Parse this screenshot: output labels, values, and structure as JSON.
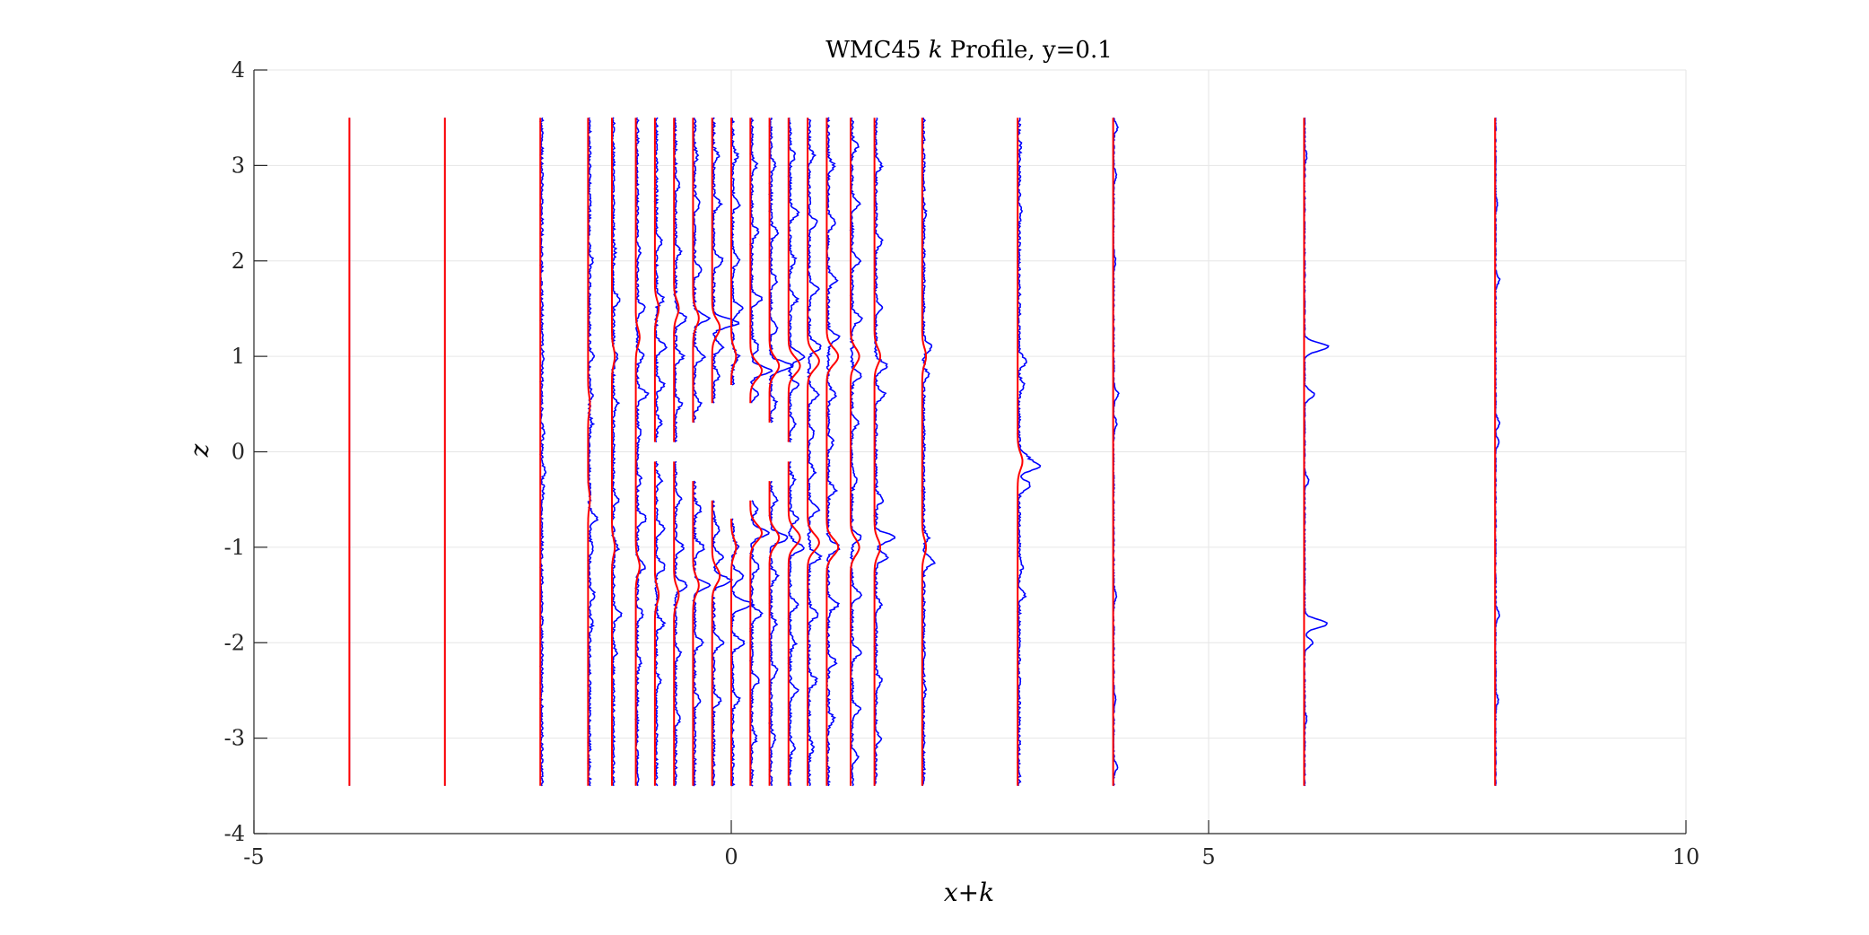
{
  "chart_data": {
    "type": "line",
    "title": "WMC45 k Profile, y=0.1",
    "title_parts": {
      "prefix": "WMC45 ",
      "italic": "k",
      "suffix": " Profile, y=0.1"
    },
    "xlabel": "x+k",
    "ylabel": "z",
    "xlim": [
      -5,
      10
    ],
    "ylim": [
      -4,
      4
    ],
    "xticks": [
      "-5",
      "0",
      "5",
      "10"
    ],
    "yticks": [
      "-4",
      "-3",
      "-2",
      "-1",
      "0",
      "1",
      "2",
      "3",
      "4"
    ],
    "grid": true,
    "z_range": [
      -3.5,
      3.5
    ],
    "colors": {
      "series_1": "#0000ff",
      "series_2": "#ff0000",
      "grid": "#e6e6e6",
      "axis": "#262626"
    },
    "stations": [
      {
        "x": -4.0,
        "gap": null,
        "blue_peaks": [],
        "red_peaks": []
      },
      {
        "x": -3.0,
        "gap": null,
        "blue_peaks": [],
        "red_peaks": []
      },
      {
        "x": -2.0,
        "gap": null,
        "blue_peaks": [
          [
            1.0,
            0.02
          ],
          [
            0.2,
            0.02
          ],
          [
            -0.2,
            0.03
          ],
          [
            -0.4,
            0.02
          ]
        ],
        "red_peaks": []
      },
      {
        "x": -1.5,
        "gap": null,
        "blue_peaks": [
          [
            2.0,
            0.03
          ],
          [
            1.0,
            0.04
          ],
          [
            0.6,
            0.03
          ],
          [
            0.3,
            0.03
          ],
          [
            -0.7,
            0.08
          ],
          [
            -1.0,
            0.04
          ],
          [
            -1.5,
            0.05
          ],
          [
            -1.8,
            0.03
          ]
        ],
        "red_peaks": [
          [
            0.5,
            0.02
          ],
          [
            -0.5,
            0.02
          ]
        ]
      },
      {
        "x": -1.25,
        "gap": null,
        "blue_peaks": [
          [
            2.1,
            0.02
          ],
          [
            1.6,
            0.06
          ],
          [
            1.0,
            0.05
          ],
          [
            0.5,
            0.05
          ],
          [
            -0.5,
            0.05
          ],
          [
            -1.0,
            0.05
          ],
          [
            -1.7,
            0.08
          ],
          [
            -2.1,
            0.03
          ]
        ],
        "red_peaks": [
          [
            1.0,
            0.03
          ],
          [
            -1.0,
            0.03
          ]
        ]
      },
      {
        "x": -1.0,
        "gap": null,
        "blue_peaks": [
          [
            2.1,
            0.03
          ],
          [
            1.5,
            0.08
          ],
          [
            1.0,
            0.07
          ],
          [
            0.6,
            0.11
          ],
          [
            0.2,
            0.04
          ],
          [
            -0.3,
            0.04
          ],
          [
            -0.7,
            0.1
          ],
          [
            -1.2,
            0.08
          ],
          [
            -1.7,
            0.06
          ],
          [
            -2.2,
            0.04
          ]
        ],
        "red_peaks": [
          [
            1.2,
            0.04
          ],
          [
            -1.2,
            0.04
          ]
        ]
      },
      {
        "x": -0.8,
        "gap": [
          -0.1,
          0.1
        ],
        "blue_peaks": [
          [
            2.2,
            0.05
          ],
          [
            1.6,
            0.08
          ],
          [
            1.1,
            0.1
          ],
          [
            0.7,
            0.08
          ],
          [
            0.3,
            0.05
          ],
          [
            -0.3,
            0.05
          ],
          [
            -0.8,
            0.08
          ],
          [
            -1.2,
            0.1
          ],
          [
            -1.8,
            0.08
          ],
          [
            -2.4,
            0.05
          ]
        ],
        "red_peaks": [
          [
            1.5,
            0.04
          ],
          [
            -1.5,
            0.04
          ]
        ]
      },
      {
        "x": -0.6,
        "gap": [
          -0.1,
          0.1
        ],
        "blue_peaks": [
          [
            2.8,
            0.04
          ],
          [
            2.1,
            0.05
          ],
          [
            1.4,
            0.12
          ],
          [
            1.0,
            0.08
          ],
          [
            0.5,
            0.06
          ],
          [
            -0.5,
            0.06
          ],
          [
            -1.0,
            0.08
          ],
          [
            -1.4,
            0.12
          ],
          [
            -2.1,
            0.05
          ],
          [
            -2.8,
            0.04
          ]
        ],
        "red_peaks": [
          [
            1.5,
            0.05
          ],
          [
            -1.5,
            0.05
          ]
        ]
      },
      {
        "x": -0.4,
        "gap": [
          -0.3,
          0.3
        ],
        "blue_peaks": [
          [
            3.1,
            0.03
          ],
          [
            2.6,
            0.06
          ],
          [
            1.9,
            0.08
          ],
          [
            1.4,
            0.15
          ],
          [
            1.0,
            0.1
          ],
          [
            0.5,
            0.06
          ],
          [
            -0.6,
            0.07
          ],
          [
            -1.0,
            0.1
          ],
          [
            -1.4,
            0.15
          ],
          [
            -2.0,
            0.08
          ],
          [
            -2.6,
            0.06
          ]
        ],
        "red_peaks": [
          [
            1.4,
            0.06
          ],
          [
            -1.4,
            0.06
          ]
        ]
      },
      {
        "x": -0.2,
        "gap": [
          -0.5,
          0.5
        ],
        "blue_peaks": [
          [
            3.1,
            0.05
          ],
          [
            2.6,
            0.07
          ],
          [
            2.0,
            0.1
          ],
          [
            1.35,
            0.26
          ],
          [
            1.1,
            0.1
          ],
          [
            0.8,
            0.06
          ],
          [
            -0.8,
            0.06
          ],
          [
            -1.1,
            0.1
          ],
          [
            -1.35,
            0.18
          ],
          [
            -2.0,
            0.1
          ],
          [
            -2.6,
            0.07
          ]
        ],
        "red_peaks": [
          [
            1.3,
            0.08
          ],
          [
            -1.3,
            0.08
          ]
        ]
      },
      {
        "x": 0.0,
        "gap": [
          -0.7,
          0.7
        ],
        "blue_peaks": [
          [
            3.1,
            0.05
          ],
          [
            2.6,
            0.07
          ],
          [
            2.0,
            0.07
          ],
          [
            1.5,
            0.1
          ],
          [
            1.0,
            0.06
          ],
          [
            -1.0,
            0.06
          ],
          [
            -1.3,
            0.12
          ],
          [
            -1.6,
            0.2
          ],
          [
            -2.0,
            0.12
          ],
          [
            -2.6,
            0.07
          ]
        ],
        "red_peaks": [
          [
            1.0,
            0.05
          ],
          [
            -1.0,
            0.05
          ]
        ]
      },
      {
        "x": 0.2,
        "gap": [
          -0.5,
          0.5
        ],
        "blue_peaks": [
          [
            3.0,
            0.05
          ],
          [
            2.3,
            0.07
          ],
          [
            1.6,
            0.1
          ],
          [
            1.1,
            0.08
          ],
          [
            0.85,
            0.2
          ],
          [
            0.6,
            0.06
          ],
          [
            -0.6,
            0.06
          ],
          [
            -0.85,
            0.18
          ],
          [
            -1.2,
            0.08
          ],
          [
            -1.7,
            0.1
          ],
          [
            -2.4,
            0.07
          ],
          [
            -3.0,
            0.05
          ]
        ],
        "red_peaks": [
          [
            0.85,
            0.12
          ],
          [
            -0.85,
            0.12
          ]
        ]
      },
      {
        "x": 0.4,
        "gap": [
          -0.3,
          0.3
        ],
        "blue_peaks": [
          [
            3.0,
            0.05
          ],
          [
            2.3,
            0.07
          ],
          [
            1.8,
            0.06
          ],
          [
            1.3,
            0.07
          ],
          [
            0.9,
            0.22
          ],
          [
            0.5,
            0.06
          ],
          [
            -0.5,
            0.06
          ],
          [
            -0.9,
            0.18
          ],
          [
            -1.3,
            0.07
          ],
          [
            -1.8,
            0.06
          ],
          [
            -2.3,
            0.07
          ],
          [
            -3.0,
            0.05
          ]
        ],
        "red_peaks": [
          [
            0.9,
            0.1
          ],
          [
            -0.9,
            0.1
          ]
        ]
      },
      {
        "x": 0.6,
        "gap": [
          -0.1,
          0.1
        ],
        "blue_peaks": [
          [
            3.1,
            0.05
          ],
          [
            2.5,
            0.08
          ],
          [
            2.0,
            0.06
          ],
          [
            1.6,
            0.08
          ],
          [
            1.0,
            0.15
          ],
          [
            0.7,
            0.08
          ],
          [
            0.3,
            0.05
          ],
          [
            -0.3,
            0.05
          ],
          [
            -0.7,
            0.08
          ],
          [
            -1.0,
            0.15
          ],
          [
            -1.6,
            0.08
          ],
          [
            -2.0,
            0.06
          ],
          [
            -2.5,
            0.08
          ],
          [
            -3.1,
            0.05
          ]
        ],
        "red_peaks": [
          [
            0.9,
            0.12
          ],
          [
            -0.9,
            0.12
          ]
        ]
      },
      {
        "x": 0.8,
        "gap": null,
        "blue_peaks": [
          [
            3.1,
            0.05
          ],
          [
            2.4,
            0.08
          ],
          [
            1.7,
            0.1
          ],
          [
            1.1,
            0.12
          ],
          [
            0.6,
            0.1
          ],
          [
            0.2,
            0.06
          ],
          [
            -0.2,
            0.06
          ],
          [
            -0.6,
            0.1
          ],
          [
            -1.1,
            0.12
          ],
          [
            -1.7,
            0.1
          ],
          [
            -2.4,
            0.08
          ],
          [
            -3.1,
            0.05
          ]
        ],
        "red_peaks": [
          [
            0.95,
            0.12
          ],
          [
            -0.95,
            0.12
          ]
        ]
      },
      {
        "x": 1.0,
        "gap": null,
        "blue_peaks": [
          [
            3.0,
            0.06
          ],
          [
            2.4,
            0.08
          ],
          [
            1.8,
            0.09
          ],
          [
            1.2,
            0.11
          ],
          [
            0.6,
            0.08
          ],
          [
            0.1,
            0.05
          ],
          [
            -0.4,
            0.08
          ],
          [
            -1.0,
            0.12
          ],
          [
            -1.6,
            0.1
          ],
          [
            -2.2,
            0.08
          ],
          [
            -2.8,
            0.06
          ]
        ],
        "red_peaks": [
          [
            1.0,
            0.12
          ],
          [
            -1.0,
            0.12
          ]
        ]
      },
      {
        "x": 1.25,
        "gap": null,
        "blue_peaks": [
          [
            3.2,
            0.06
          ],
          [
            2.6,
            0.08
          ],
          [
            2.0,
            0.09
          ],
          [
            1.4,
            0.1
          ],
          [
            0.8,
            0.09
          ],
          [
            0.3,
            0.06
          ],
          [
            -0.3,
            0.06
          ],
          [
            -0.9,
            0.1
          ],
          [
            -1.5,
            0.1
          ],
          [
            -2.1,
            0.09
          ],
          [
            -2.7,
            0.08
          ],
          [
            -3.2,
            0.06
          ]
        ],
        "red_peaks": [
          [
            1.0,
            0.09
          ],
          [
            -1.0,
            0.09
          ]
        ]
      },
      {
        "x": 1.5,
        "gap": null,
        "blue_peaks": [
          [
            3.0,
            0.06
          ],
          [
            2.2,
            0.06
          ],
          [
            1.5,
            0.06
          ],
          [
            0.9,
            0.12
          ],
          [
            0.6,
            0.1
          ],
          [
            -0.5,
            0.07
          ],
          [
            -0.9,
            0.2
          ],
          [
            -1.1,
            0.12
          ],
          [
            -1.6,
            0.06
          ],
          [
            -2.4,
            0.06
          ],
          [
            -3.0,
            0.05
          ]
        ],
        "red_peaks": [
          [
            1.0,
            0.06
          ],
          [
            -1.0,
            0.06
          ]
        ]
      },
      {
        "x": 2.0,
        "gap": null,
        "blue_peaks": [
          [
            1.1,
            0.08
          ],
          [
            0.8,
            0.05
          ],
          [
            -0.9,
            0.05
          ],
          [
            -1.15,
            0.11
          ],
          [
            2.5,
            0.02
          ],
          [
            -2.5,
            0.02
          ]
        ],
        "red_peaks": [
          [
            1.0,
            0.04
          ],
          [
            -1.0,
            0.04
          ]
        ]
      },
      {
        "x": 3.0,
        "gap": null,
        "blue_peaks": [
          [
            0.95,
            0.08
          ],
          [
            0.7,
            0.05
          ],
          [
            -0.15,
            0.22
          ],
          [
            -0.35,
            0.12
          ],
          [
            -0.05,
            0.08
          ],
          [
            -1.5,
            0.06
          ],
          [
            -1.2,
            0.04
          ],
          [
            2.5,
            0.02
          ],
          [
            3.2,
            0.02
          ]
        ],
        "red_peaks": [
          [
            -0.1,
            0.05
          ]
        ]
      },
      {
        "x": 4.0,
        "gap": null,
        "blue_peaks": [
          [
            3.4,
            0.04
          ],
          [
            2.9,
            0.03
          ],
          [
            2.0,
            0.02
          ],
          [
            0.6,
            0.05
          ],
          [
            0.3,
            0.03
          ],
          [
            -1.5,
            0.03
          ],
          [
            -2.6,
            0.02
          ],
          [
            -3.3,
            0.04
          ]
        ],
        "red_peaks": []
      },
      {
        "x": 6.0,
        "gap": null,
        "blue_peaks": [
          [
            1.1,
            0.25
          ],
          [
            0.6,
            0.1
          ],
          [
            -1.8,
            0.24
          ],
          [
            -2.0,
            0.08
          ],
          [
            -0.3,
            0.04
          ],
          [
            3.1,
            0.02
          ],
          [
            -2.8,
            0.02
          ]
        ],
        "red_peaks": []
      },
      {
        "x": 8.0,
        "gap": null,
        "blue_peaks": [
          [
            1.8,
            0.04
          ],
          [
            0.3,
            0.04
          ],
          [
            0.1,
            0.03
          ],
          [
            -1.7,
            0.04
          ],
          [
            -2.6,
            0.03
          ],
          [
            2.6,
            0.02
          ]
        ],
        "red_peaks": []
      }
    ]
  }
}
